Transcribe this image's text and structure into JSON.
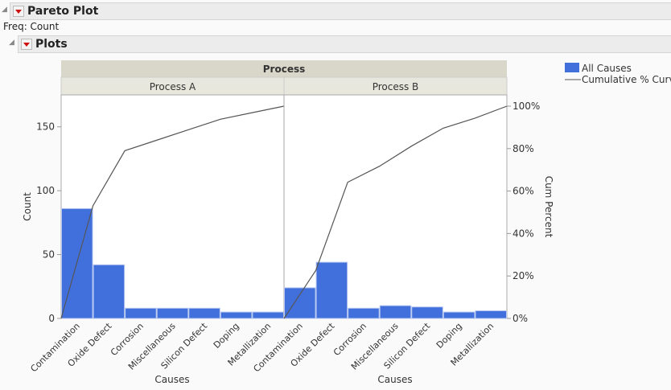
{
  "outline": {
    "title": "Pareto Plot",
    "freq": "Freq: Count",
    "plots_title": "Plots"
  },
  "chart_data": {
    "type": "bar",
    "group_title": "Process",
    "categories": [
      "Contamination",
      "Oxide Defect",
      "Corrosion",
      "Miscellaneous",
      "Silicon Defect",
      "Doping",
      "Metallization"
    ],
    "panels": [
      {
        "name": "Process A",
        "values": [
          86,
          42,
          8,
          8,
          8,
          5,
          5
        ]
      },
      {
        "name": "Process B",
        "values": [
          24,
          44,
          8,
          10,
          9,
          5,
          6
        ]
      }
    ],
    "xlabel": "Causes",
    "ylabel": "Count",
    "y2label": "Cum Percent",
    "ylim": [
      0,
      175
    ],
    "yticks": [
      0,
      50,
      100,
      150
    ],
    "y2ticks": [
      "0%",
      "20%",
      "40%",
      "60%",
      "80%",
      "100%"
    ],
    "legend": {
      "placement": "right",
      "bar": "All Causes",
      "line": "Cumulative % Curve"
    },
    "bar_color": "#4170DD",
    "line_color": "#555555"
  }
}
